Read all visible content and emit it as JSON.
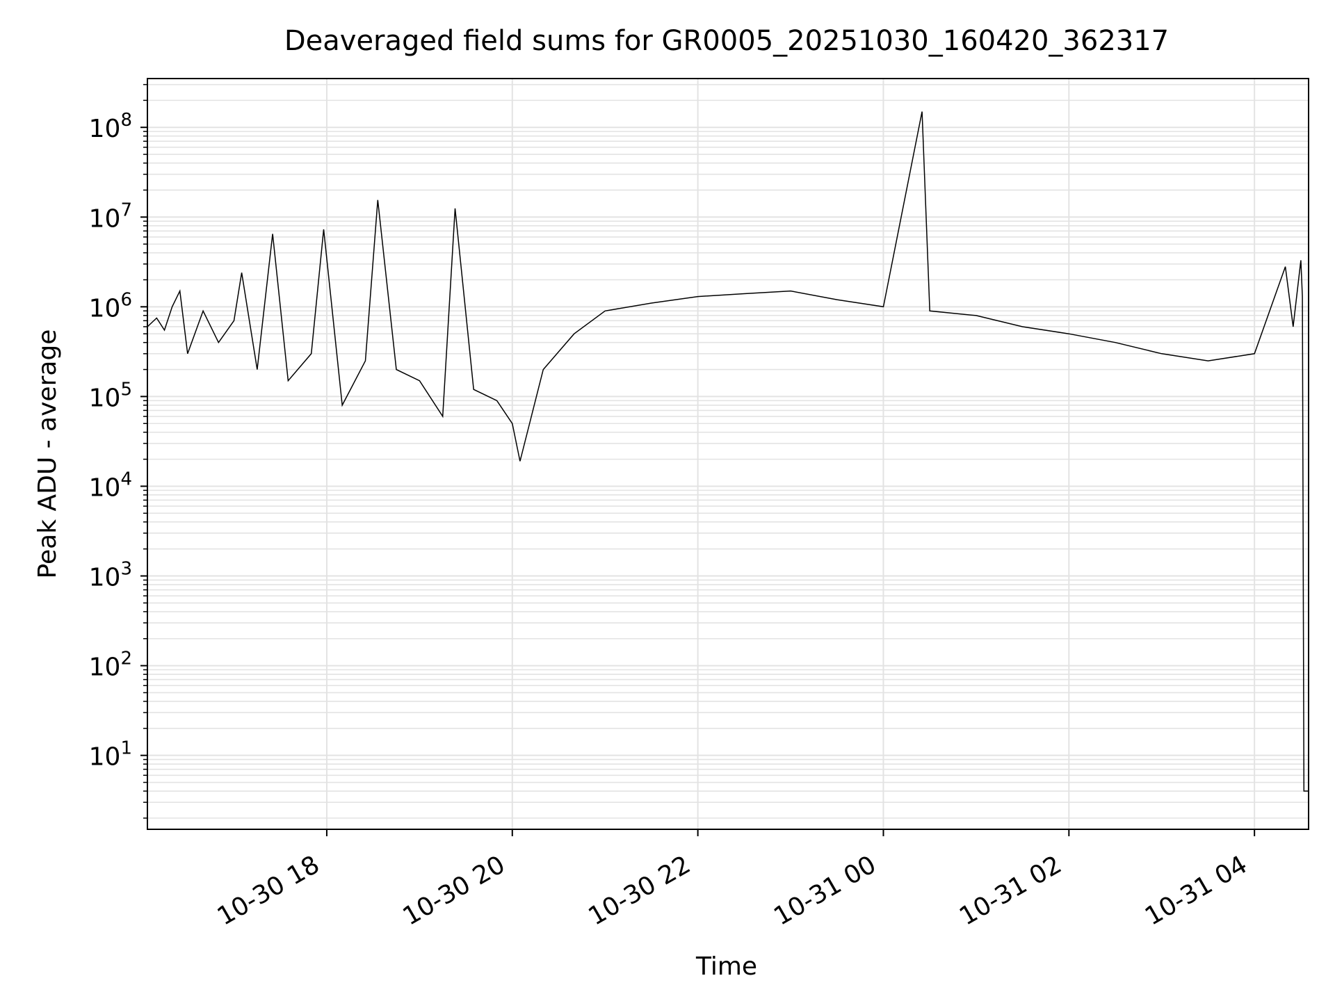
{
  "chart_data": {
    "type": "line",
    "title": "Deaveraged field sums for GR0005_20251030_160420_362317",
    "xlabel": "Time",
    "ylabel": "Peak ADU - average",
    "xscale": "time",
    "yscale": "log",
    "xlim": [
      "2025-10-30 16:04",
      "2025-10-31 04:35"
    ],
    "ylim": [
      1.5,
      350000000
    ],
    "grid": true,
    "legend": "none",
    "line_color": "#000000",
    "grid_color": "#e3e3e3",
    "x_ticks": [
      {
        "label": "10-30 18",
        "time": "2025-10-30 18:00"
      },
      {
        "label": "10-30 20",
        "time": "2025-10-30 20:00"
      },
      {
        "label": "10-30 22",
        "time": "2025-10-30 22:00"
      },
      {
        "label": "10-31 00",
        "time": "2025-10-31 00:00"
      },
      {
        "label": "10-31 02",
        "time": "2025-10-31 02:00"
      },
      {
        "label": "10-31 04",
        "time": "2025-10-31 04:00"
      }
    ],
    "y_ticks": [
      {
        "base": "10",
        "exp": "1",
        "value": 10
      },
      {
        "base": "10",
        "exp": "2",
        "value": 100
      },
      {
        "base": "10",
        "exp": "3",
        "value": 1000
      },
      {
        "base": "10",
        "exp": "4",
        "value": 10000
      },
      {
        "base": "10",
        "exp": "5",
        "value": 100000
      },
      {
        "base": "10",
        "exp": "6",
        "value": 1000000
      },
      {
        "base": "10",
        "exp": "7",
        "value": 10000000
      },
      {
        "base": "10",
        "exp": "8",
        "value": 100000000
      }
    ],
    "series": [
      {
        "values_note_x_y": [
          [
            "2025-10-30 16:04",
            600000
          ],
          [
            "2025-10-30 16:10",
            750000
          ],
          [
            "2025-10-30 16:15",
            550000
          ],
          [
            "2025-10-30 16:20",
            1000000
          ],
          [
            "2025-10-30 16:25",
            1500000
          ],
          [
            "2025-10-30 16:30",
            300000
          ],
          [
            "2025-10-30 16:40",
            900000
          ],
          [
            "2025-10-30 16:50",
            400000
          ],
          [
            "2025-10-30 17:00",
            700000
          ],
          [
            "2025-10-30 17:05",
            2400000
          ],
          [
            "2025-10-30 17:15",
            200000
          ],
          [
            "2025-10-30 17:25",
            6500000
          ],
          [
            "2025-10-30 17:35",
            150000
          ],
          [
            "2025-10-30 17:50",
            300000
          ],
          [
            "2025-10-30 17:58",
            7300000
          ],
          [
            "2025-10-30 18:10",
            80000
          ],
          [
            "2025-10-30 18:25",
            250000
          ],
          [
            "2025-10-30 18:33",
            15500000
          ],
          [
            "2025-10-30 18:45",
            200000
          ],
          [
            "2025-10-30 19:00",
            150000
          ],
          [
            "2025-10-30 19:15",
            60000
          ],
          [
            "2025-10-30 19:23",
            12500000
          ],
          [
            "2025-10-30 19:35",
            120000
          ],
          [
            "2025-10-30 19:50",
            90000
          ],
          [
            "2025-10-30 20:00",
            50000
          ],
          [
            "2025-10-30 20:05",
            19000
          ],
          [
            "2025-10-30 20:20",
            200000
          ],
          [
            "2025-10-30 20:40",
            500000
          ],
          [
            "2025-10-30 21:00",
            900000
          ],
          [
            "2025-10-30 21:30",
            1100000
          ],
          [
            "2025-10-30 22:00",
            1300000
          ],
          [
            "2025-10-30 22:30",
            1400000
          ],
          [
            "2025-10-30 23:00",
            1500000
          ],
          [
            "2025-10-30 23:30",
            1200000
          ],
          [
            "2025-10-31 00:00",
            1000000
          ],
          [
            "2025-10-31 00:25",
            150000000
          ],
          [
            "2025-10-31 00:30",
            900000
          ],
          [
            "2025-10-31 01:00",
            800000
          ],
          [
            "2025-10-31 01:30",
            600000
          ],
          [
            "2025-10-31 02:00",
            500000
          ],
          [
            "2025-10-31 02:30",
            400000
          ],
          [
            "2025-10-31 03:00",
            300000
          ],
          [
            "2025-10-31 03:30",
            250000
          ],
          [
            "2025-10-31 04:00",
            300000
          ],
          [
            "2025-10-31 04:20",
            2800000
          ],
          [
            "2025-10-31 04:25",
            600000
          ],
          [
            "2025-10-31 04:30",
            3300000
          ],
          [
            "2025-10-31 04:31",
            1300000
          ],
          [
            "2025-10-31 04:32",
            4
          ],
          [
            "2025-10-31 04:35",
            4
          ]
        ]
      }
    ]
  }
}
